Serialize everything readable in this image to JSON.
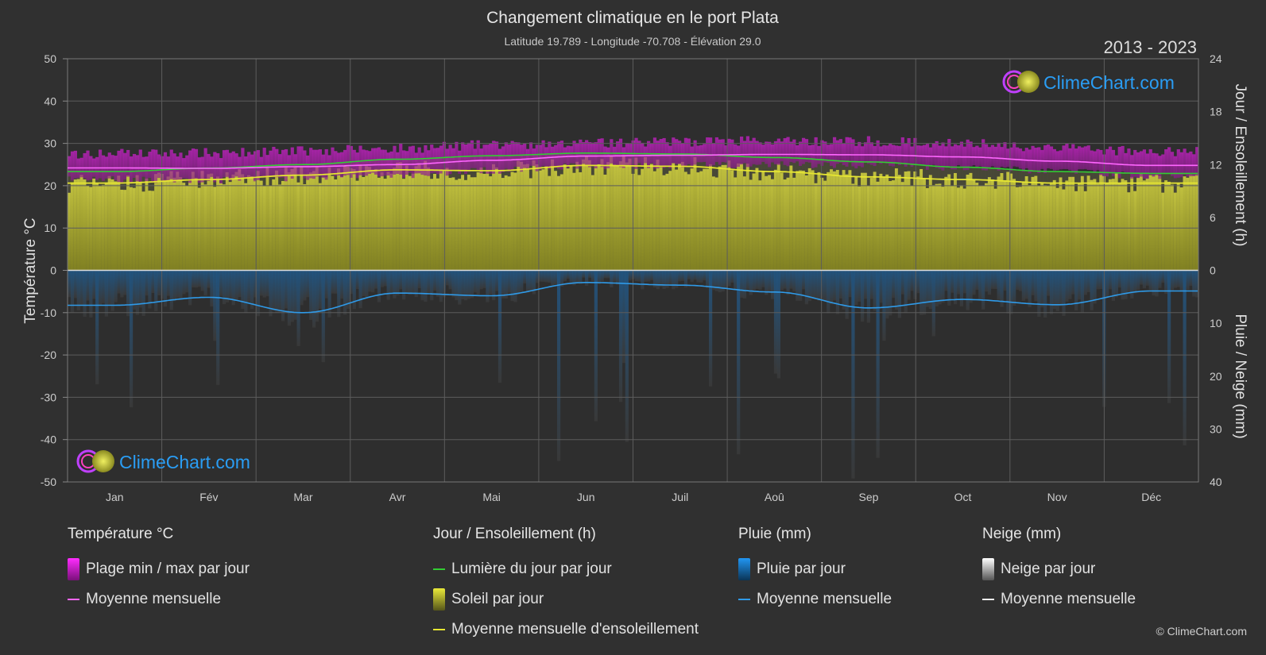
{
  "chart_data": {
    "type": "area",
    "title": "Changement climatique en le port Plata",
    "subtitle": "Latitude 19.789 - Longitude -70.708 - Élévation 29.0",
    "period": "2013 - 2023",
    "brand": "ClimeChart.com",
    "copyright": "© ClimeChart.com",
    "categories": [
      "Jan",
      "Fév",
      "Mar",
      "Avr",
      "Mai",
      "Jun",
      "Juil",
      "Aoû",
      "Sep",
      "Oct",
      "Nov",
      "Déc"
    ],
    "y_left": {
      "label": "Température °C",
      "ticks": [
        50,
        40,
        30,
        20,
        10,
        0,
        -10,
        -20,
        -30,
        -40,
        -50
      ],
      "range": [
        -50,
        50
      ]
    },
    "y_right_top": {
      "label": "Jour / Ensoleillement (h)",
      "ticks": [
        24,
        18,
        12,
        6,
        0
      ],
      "range": [
        0,
        24
      ]
    },
    "y_right_bottom": {
      "label": "Pluie / Neige (mm)",
      "ticks": [
        0,
        10,
        20,
        30,
        40
      ],
      "range": [
        0,
        40
      ]
    },
    "grid": true,
    "series": [
      {
        "name": "Moyenne mensuelle",
        "group": "temperature",
        "unit": "°C",
        "values": [
          24.2,
          24.1,
          24.5,
          25.0,
          26.0,
          27.0,
          27.2,
          27.4,
          27.3,
          26.8,
          25.8,
          24.8
        ]
      },
      {
        "name": "Plage min / max par jour",
        "group": "temperature",
        "unit": "°C",
        "min": [
          21.5,
          21.3,
          21.8,
          22.5,
          23.6,
          24.6,
          24.8,
          25.0,
          24.8,
          24.3,
          23.4,
          22.3
        ],
        "max": [
          27.5,
          27.7,
          28.2,
          28.8,
          29.6,
          30.2,
          30.4,
          30.6,
          30.5,
          30.0,
          29.0,
          28.0
        ]
      },
      {
        "name": "Lumière du jour par jour",
        "group": "daylight",
        "unit": "h",
        "values": [
          11.2,
          11.6,
          12.0,
          12.6,
          13.0,
          13.3,
          13.2,
          12.8,
          12.3,
          11.7,
          11.2,
          11.0
        ]
      },
      {
        "name": "Moyenne mensuelle d'ensoleillement",
        "group": "sunshine",
        "unit": "h",
        "values": [
          9.9,
          10.3,
          10.8,
          11.4,
          11.3,
          11.9,
          11.8,
          11.2,
          10.6,
          10.3,
          9.9,
          9.9
        ]
      },
      {
        "name": "Moyenne mensuelle",
        "group": "rain",
        "unit": "mm",
        "values": [
          6.6,
          5.1,
          8.0,
          4.3,
          4.8,
          2.3,
          2.8,
          4.1,
          7.1,
          5.5,
          6.5,
          3.9
        ]
      }
    ],
    "legend": {
      "columns": [
        {
          "header": "Température °C",
          "items": [
            {
              "label": "Plage min / max par jour",
              "kind": "box",
              "color": "#e020e0"
            },
            {
              "label": "Moyenne mensuelle",
              "kind": "line",
              "color": "#ff66ff"
            }
          ]
        },
        {
          "header": "Jour / Ensoleillement (h)",
          "items": [
            {
              "label": "Lumière du jour par jour",
              "kind": "line",
              "color": "#33cc33"
            },
            {
              "label": "Soleil par jour",
              "kind": "box",
              "color": "#c8c832"
            },
            {
              "label": "Moyenne mensuelle d'ensoleillement",
              "kind": "line",
              "color": "#e6e632"
            }
          ]
        },
        {
          "header": "Pluie (mm)",
          "items": [
            {
              "label": "Pluie par jour",
              "kind": "box",
              "color": "#1f8fe0"
            },
            {
              "label": "Moyenne mensuelle",
              "kind": "line",
              "color": "#2f9ae8"
            }
          ]
        },
        {
          "header": "Neige (mm)",
          "items": [
            {
              "label": "Neige par jour",
              "kind": "box",
              "color": "#dddddd"
            },
            {
              "label": "Moyenne mensuelle",
              "kind": "line",
              "color": "#eeeeee"
            }
          ]
        }
      ]
    },
    "colors": {
      "background": "#303030",
      "grid": "#5a5a5a",
      "axis_text": "#cccccc",
      "brand": "#2a9df4"
    }
  }
}
